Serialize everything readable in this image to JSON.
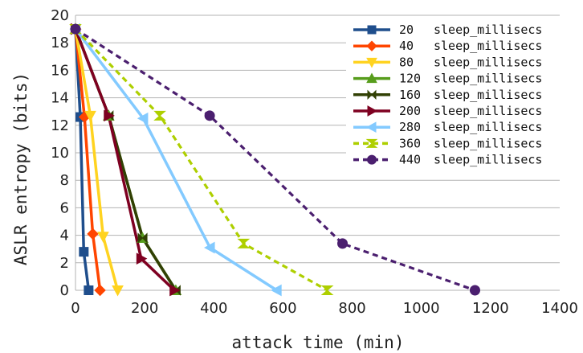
{
  "chart_data": {
    "type": "line",
    "title": "",
    "xlabel": "attack time (min)",
    "ylabel": "ASLR entropy (bits)",
    "xlim": [
      0,
      1400
    ],
    "ylim": [
      0,
      20
    ],
    "xticks": [
      "0",
      "200",
      "400",
      "600",
      "800",
      "1000",
      "1200",
      "1400"
    ],
    "yticks": [
      "0",
      "2",
      "4",
      "6",
      "8",
      "10",
      "12",
      "14",
      "16",
      "18",
      "20"
    ],
    "grid": "horizontal",
    "legend_position": "top-right",
    "series": [
      {
        "name": "20",
        "label": "sleep_millisecs",
        "color": "#1f4e8c",
        "marker": "square",
        "dashed": false,
        "points": [
          [
            0,
            19
          ],
          [
            14,
            12.6
          ],
          [
            24,
            2.8
          ],
          [
            38,
            0
          ]
        ]
      },
      {
        "name": "40",
        "label": "sleep_millisecs",
        "color": "#ff4500",
        "marker": "diamond",
        "dashed": false,
        "points": [
          [
            0,
            19
          ],
          [
            26,
            12.6
          ],
          [
            50,
            4.1
          ],
          [
            71,
            0
          ]
        ]
      },
      {
        "name": "80",
        "label": "sleep_millisecs",
        "color": "#ffd320",
        "marker": "triangle-down",
        "dashed": false,
        "points": [
          [
            0,
            19
          ],
          [
            43,
            12.7
          ],
          [
            80,
            3.9
          ],
          [
            122,
            0
          ]
        ]
      },
      {
        "name": "120",
        "label": "sleep_millisecs",
        "color": "#579d1c",
        "marker": "triangle-up",
        "dashed": false,
        "points": [
          [
            0,
            19
          ],
          [
            96,
            12.7
          ],
          [
            194,
            3.8
          ],
          [
            290,
            0
          ]
        ]
      },
      {
        "name": "160",
        "label": "sleep_millisecs",
        "color": "#314004",
        "marker": "bowtie",
        "dashed": false,
        "points": [
          [
            0,
            19
          ],
          [
            96,
            12.7
          ],
          [
            194,
            3.8
          ],
          [
            290,
            0
          ]
        ]
      },
      {
        "name": "200",
        "label": "sleep_millisecs",
        "color": "#7e0021",
        "marker": "triangle-right",
        "dashed": false,
        "points": [
          [
            0,
            19
          ],
          [
            96,
            12.7
          ],
          [
            190,
            2.3
          ],
          [
            286,
            0
          ]
        ]
      },
      {
        "name": "280",
        "label": "sleep_millisecs",
        "color": "#83caff",
        "marker": "triangle-left",
        "dashed": false,
        "points": [
          [
            0,
            19
          ],
          [
            196,
            12.5
          ],
          [
            389,
            3.1
          ],
          [
            582,
            0
          ]
        ]
      },
      {
        "name": "360",
        "label": "sleep_millisecs",
        "color": "#aecf00",
        "marker": "hourglass",
        "dashed": true,
        "points": [
          [
            0,
            19
          ],
          [
            244,
            12.7
          ],
          [
            486,
            3.4
          ],
          [
            728,
            0
          ]
        ]
      },
      {
        "name": "440",
        "label": "sleep_millisecs",
        "color": "#4b1f6f",
        "marker": "circle",
        "dashed": true,
        "points": [
          [
            0,
            19
          ],
          [
            388,
            12.7
          ],
          [
            772,
            3.4
          ],
          [
            1155,
            0
          ]
        ]
      }
    ]
  }
}
